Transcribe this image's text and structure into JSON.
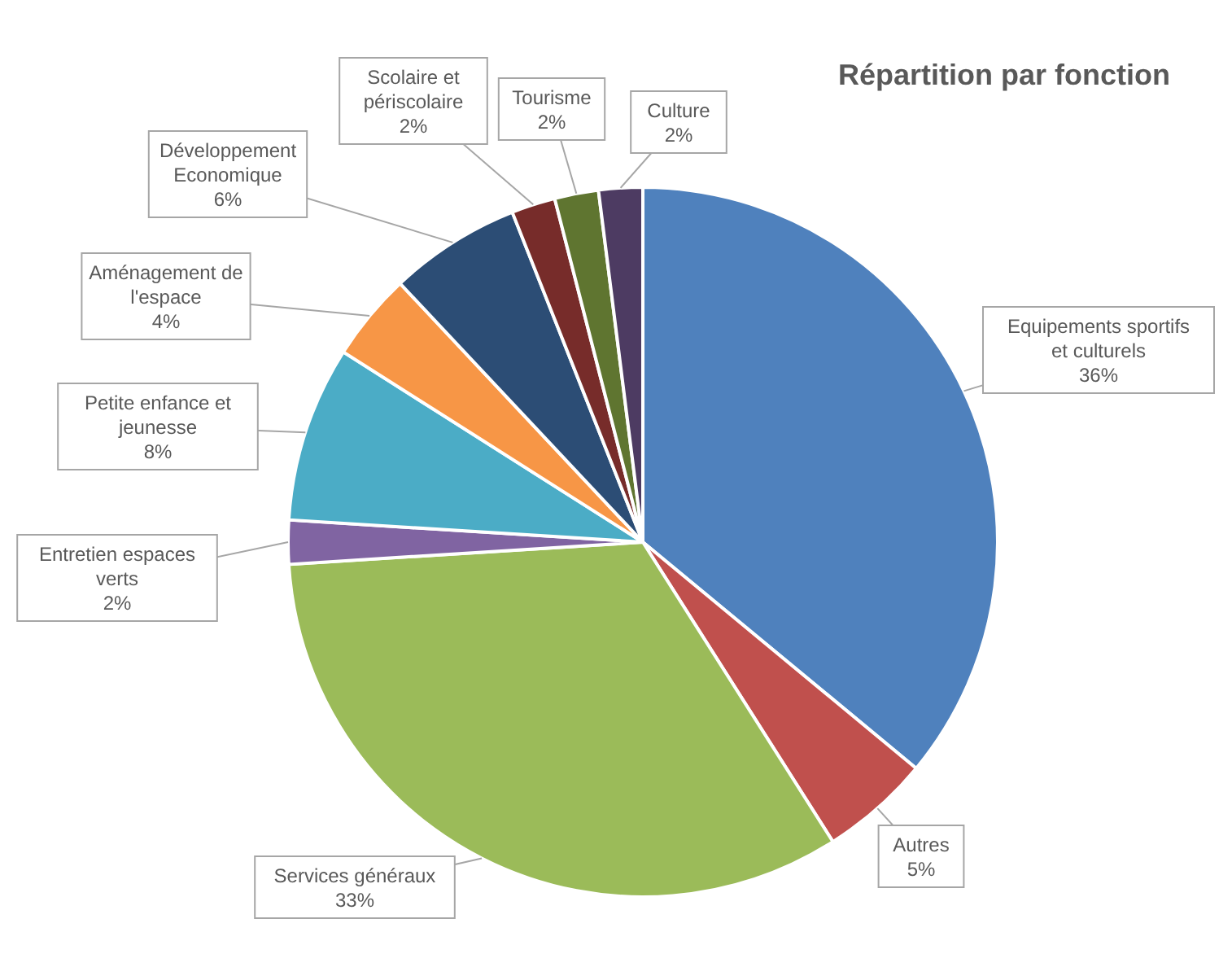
{
  "chart_data": {
    "type": "pie",
    "title": "Répartition par fonction",
    "categories": [
      "Equipements sportifs et culturels",
      "Autres",
      "Services généraux",
      "Entretien espaces verts",
      "Petite enfance et jeunesse",
      "Aménagement de l'espace",
      "Développement Economique",
      "Scolaire et périscolaire",
      "Tourisme",
      "Culture"
    ],
    "values": [
      36,
      5,
      33,
      2,
      8,
      4,
      6,
      2,
      2,
      2
    ],
    "colors": [
      "#4f81bd",
      "#c0504d",
      "#9bbb59",
      "#8064a2",
      "#4bacc6",
      "#f79646",
      "#2c4d75",
      "#772c2a",
      "#5f7530",
      "#4d3b62"
    ],
    "value_labels": [
      "36%",
      "5%",
      "33%",
      "2%",
      "8%",
      "4%",
      "6%",
      "2%",
      "2%",
      "2%"
    ]
  }
}
